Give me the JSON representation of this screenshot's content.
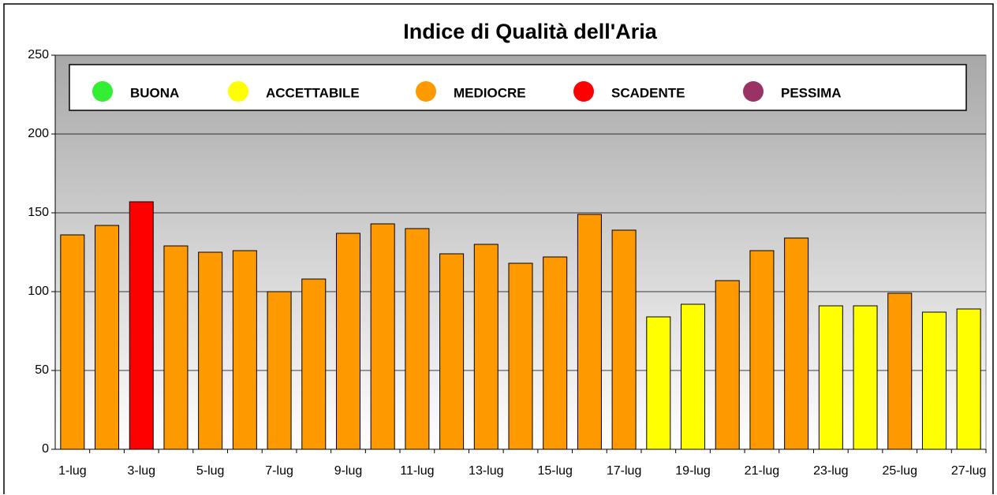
{
  "chart_data": {
    "type": "bar",
    "title": "Indice di Qualità dell'Aria",
    "categories": [
      "1-lug",
      null,
      "3-lug",
      null,
      "5-lug",
      null,
      "7-lug",
      null,
      "9-lug",
      null,
      "11-lug",
      null,
      "13-lug",
      null,
      "15-lug",
      null,
      "17-lug",
      null,
      "19-lug",
      null,
      "21-lug",
      null,
      "23-lug",
      null,
      "25-lug",
      null,
      "27-lug"
    ],
    "values": [
      136,
      142,
      157,
      129,
      125,
      126,
      100,
      108,
      137,
      143,
      140,
      124,
      130,
      118,
      122,
      149,
      139,
      84,
      92,
      107,
      126,
      134,
      91,
      91,
      99,
      87,
      89
    ],
    "colors": [
      "#ff9900",
      "#ff9900",
      "#ff0000",
      "#ff9900",
      "#ff9900",
      "#ff9900",
      "#ff9900",
      "#ff9900",
      "#ff9900",
      "#ff9900",
      "#ff9900",
      "#ff9900",
      "#ff9900",
      "#ff9900",
      "#ff9900",
      "#ff9900",
      "#ff9900",
      "#ffff00",
      "#ffff00",
      "#ff9900",
      "#ff9900",
      "#ff9900",
      "#ffff00",
      "#ffff00",
      "#ff9900",
      "#ffff00",
      "#ffff00"
    ],
    "legend_items": [
      {
        "name": "BUONA",
        "color": "#33ee33"
      },
      {
        "name": "ACCETTABILE",
        "color": "#ffff00"
      },
      {
        "name": "MEDIOCRE",
        "color": "#ff9900"
      },
      {
        "name": "SCADENTE",
        "color": "#ff0000"
      },
      {
        "name": "PESSIMA",
        "color": "#993366"
      }
    ],
    "legend": "top",
    "ylim": [
      0,
      250
    ],
    "yticks": [
      0,
      50,
      100,
      150,
      200,
      250
    ],
    "grid": true
  }
}
